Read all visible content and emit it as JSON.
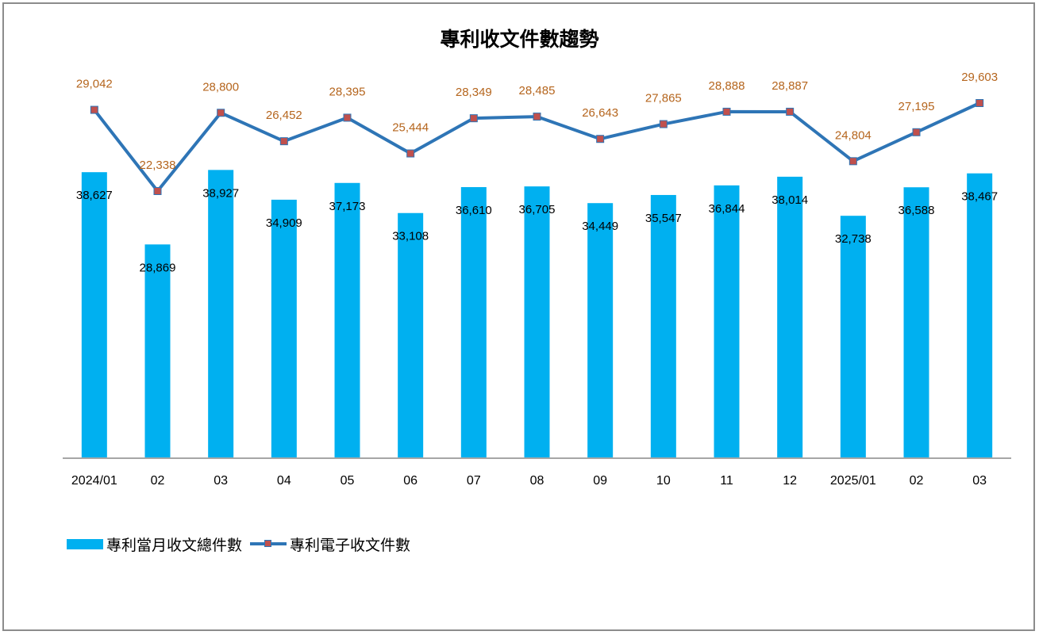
{
  "chart_data": {
    "type": "bar",
    "title": "專利收文件數趨勢",
    "categories": [
      "2024/01",
      "02",
      "03",
      "04",
      "05",
      "06",
      "07",
      "08",
      "09",
      "10",
      "11",
      "12",
      "2025/01",
      "02",
      "03"
    ],
    "series": [
      {
        "name": "專利當月收文總件數",
        "kind": "bar",
        "color": "#00b0f0",
        "values": [
          38627,
          28869,
          38927,
          34909,
          37173,
          33108,
          36610,
          36705,
          34449,
          35547,
          36844,
          38014,
          32738,
          36588,
          38467
        ],
        "labels": [
          "38,627",
          "28,869",
          "38,927",
          "34,909",
          "37,173",
          "33,108",
          "36,610",
          "36,705",
          "34,449",
          "35,547",
          "36,844",
          "38,014",
          "32,738",
          "36,588",
          "38,467"
        ]
      },
      {
        "name": "專利電子收文件數",
        "kind": "line",
        "color": "#2e75b6",
        "marker_color": "#c0504d",
        "label_color": "#b5651d",
        "values": [
          29042,
          22338,
          28800,
          26452,
          28395,
          25444,
          28349,
          28485,
          26643,
          27865,
          28888,
          28887,
          24804,
          27195,
          29603
        ],
        "labels": [
          "29,042",
          "22,338",
          "28,800",
          "26,452",
          "28,395",
          "25,444",
          "28,349",
          "28,485",
          "26,643",
          "27,865",
          "28,888",
          "28,887",
          "24,804",
          "27,195",
          "29,603"
        ]
      }
    ],
    "bar_ylim": [
      0,
      44000
    ],
    "line_ylim": [
      -2500,
      33000
    ],
    "grid": false,
    "legend": "bottom-left"
  }
}
